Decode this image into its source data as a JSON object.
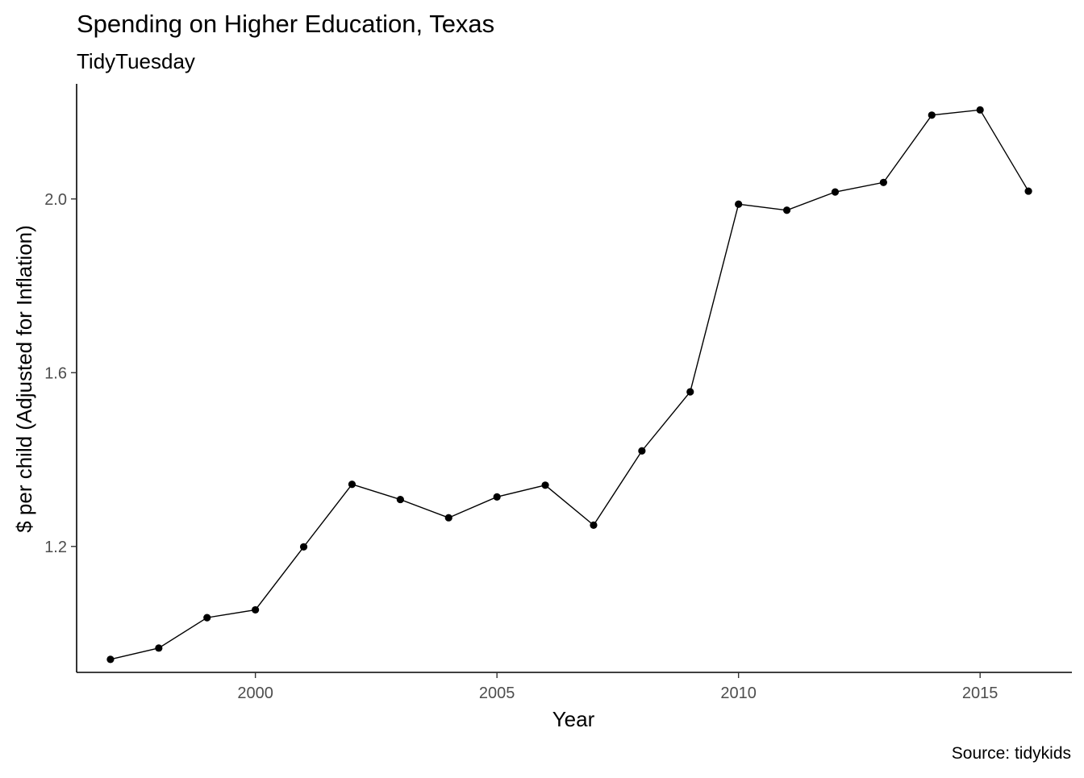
{
  "chart_data": {
    "type": "line",
    "title": "Spending on Higher Education, Texas",
    "subtitle": "TidyTuesday",
    "xlabel": "Year",
    "ylabel": "$ per child (Adjusted for Inflation)",
    "caption": "Source: tidykids",
    "x_ticks": [
      2000,
      2005,
      2010,
      2015
    ],
    "y_ticks": [
      1.2,
      1.6,
      2.0
    ],
    "y_tick_labels": [
      "1.2",
      "1.6",
      "2.0"
    ],
    "xlim": [
      1996.3,
      2016.9
    ],
    "ylim": [
      0.91,
      2.265
    ],
    "grid": false,
    "legend": "none",
    "series": [
      {
        "x": [
          1997,
          1998,
          1999,
          2000,
          2001,
          2002,
          2003,
          2004,
          2005,
          2006,
          2007,
          2008,
          2009,
          2010,
          2011,
          2012,
          2013,
          2014,
          2015,
          2016
        ],
        "values": [
          0.94,
          0.966,
          1.036,
          1.054,
          1.199,
          1.343,
          1.308,
          1.266,
          1.314,
          1.341,
          1.249,
          1.42,
          1.556,
          1.988,
          1.974,
          2.016,
          2.038,
          2.193,
          2.205,
          2.018
        ],
        "color": "#000000"
      }
    ]
  }
}
